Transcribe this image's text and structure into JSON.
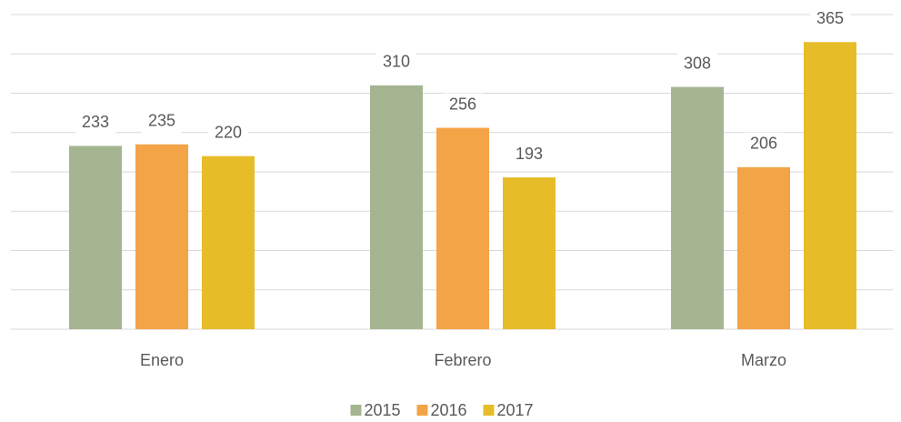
{
  "chart_data": {
    "type": "bar",
    "categories": [
      "Enero",
      "Febrero",
      "Marzo"
    ],
    "series": [
      {
        "name": "2015",
        "color": "#a5b592",
        "values": [
          233,
          310,
          308
        ]
      },
      {
        "name": "2016",
        "color": "#f3a447",
        "values": [
          235,
          256,
          206
        ]
      },
      {
        "name": "2017",
        "color": "#e7bc29",
        "values": [
          220,
          193,
          365
        ]
      }
    ],
    "ylim": [
      0,
      400
    ],
    "yticks": [
      0,
      50,
      100,
      150,
      200,
      250,
      300,
      350,
      400
    ],
    "grid": true,
    "legend": "bottom"
  }
}
